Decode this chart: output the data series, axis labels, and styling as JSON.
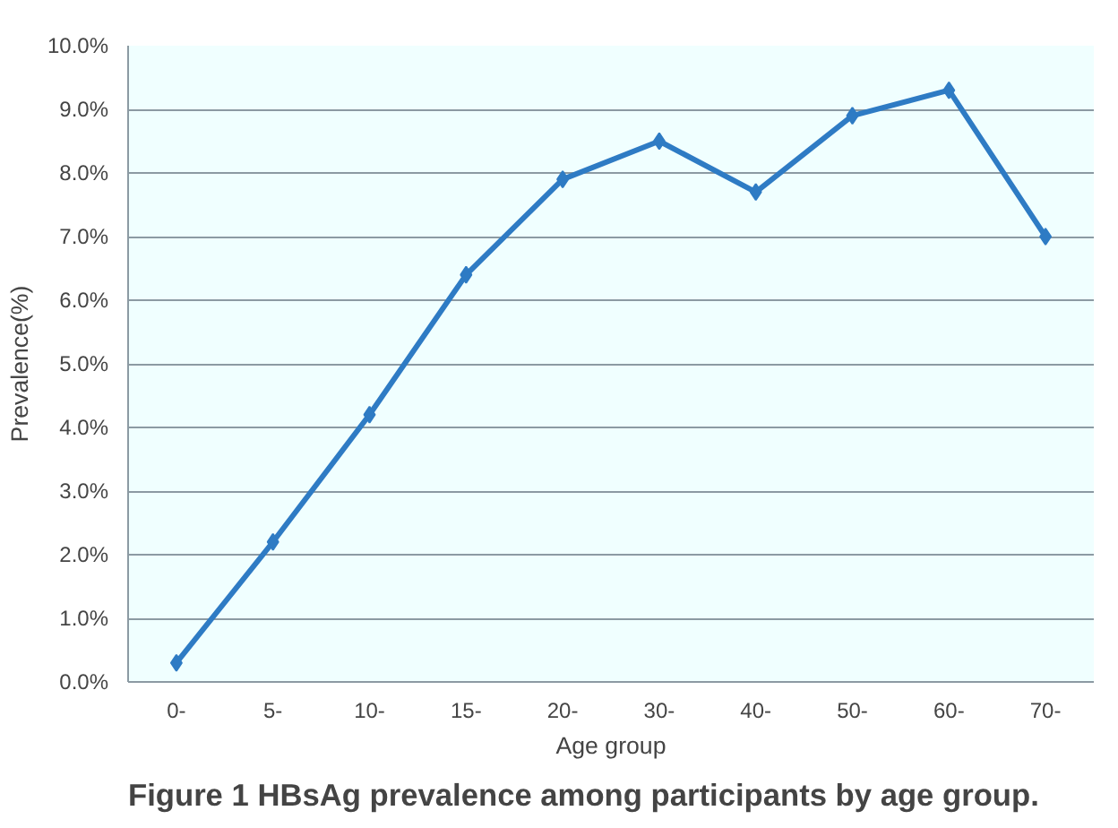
{
  "chart_data": {
    "type": "line",
    "title": "Figure 1 HBsAg prevalence among participants by age group.",
    "xlabel": "Age group",
    "ylabel": "Prevalence(%)",
    "categories": [
      "0-",
      "5-",
      "10-",
      "15-",
      "20-",
      "30-",
      "40-",
      "50-",
      "60-",
      "70-"
    ],
    "series": [
      {
        "color": "#2e7bc4",
        "values": [
          0.3,
          2.2,
          4.2,
          6.4,
          7.9,
          8.5,
          7.7,
          8.9,
          9.3,
          7.0
        ]
      }
    ],
    "ylim": [
      0,
      10
    ],
    "yticks": [
      {
        "value": 0,
        "label": "0.0%"
      },
      {
        "value": 1,
        "label": "1.0%"
      },
      {
        "value": 2,
        "label": "2.0%"
      },
      {
        "value": 3,
        "label": "3.0%"
      },
      {
        "value": 4,
        "label": "4.0%"
      },
      {
        "value": 5,
        "label": "5.0%"
      },
      {
        "value": 6,
        "label": "6.0%"
      },
      {
        "value": 7,
        "label": "7.0%"
      },
      {
        "value": 8,
        "label": "8.0%"
      },
      {
        "value": 9,
        "label": "9.0%"
      },
      {
        "value": 10,
        "label": "10.0%"
      }
    ],
    "grid": "y",
    "marker": "diamond",
    "line_style": "solid"
  }
}
